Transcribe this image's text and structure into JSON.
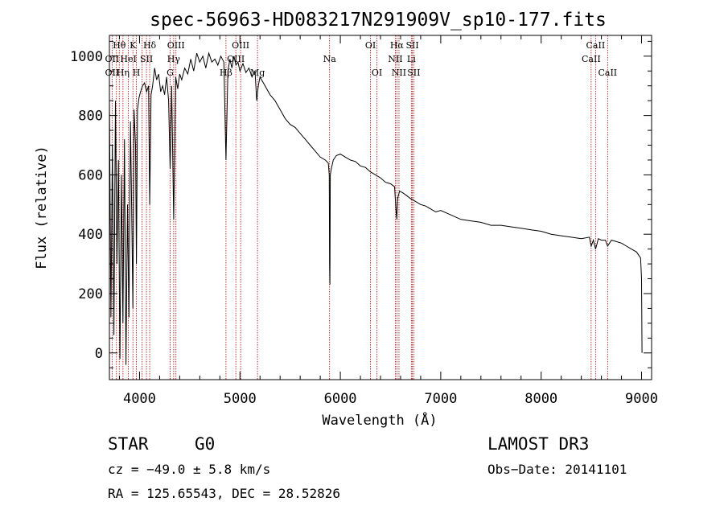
{
  "chart_data": {
    "type": "line",
    "title": "spec-56963-HD083217N291909V_sp10-177.fits",
    "xlabel": "Wavelength (Å)",
    "ylabel": "Flux (relative)",
    "xlim": [
      3700,
      9100
    ],
    "ylim": [
      -90,
      1070
    ],
    "xticks": [
      4000,
      5000,
      6000,
      7000,
      8000,
      9000
    ],
    "yticks": [
      0,
      200,
      400,
      600,
      800,
      1000
    ],
    "x_minor_step": 200,
    "y_minor_step": 50,
    "tick_labels_x": [
      "4000",
      "5000",
      "6000",
      "7000",
      "8000",
      "9000"
    ],
    "tick_labels_y": [
      "0",
      "200",
      "400",
      "600",
      "800",
      "1000"
    ],
    "series": [
      {
        "name": "spectrum",
        "color": "#000000",
        "x": [
          3700,
          3715,
          3730,
          3745,
          3760,
          3775,
          3790,
          3805,
          3820,
          3835,
          3850,
          3865,
          3880,
          3895,
          3910,
          3925,
          3934,
          3945,
          3960,
          3969,
          3980,
          3995,
          4010,
          4030,
          4050,
          4070,
          4090,
          4101,
          4115,
          4130,
          4150,
          4170,
          4190,
          4210,
          4230,
          4250,
          4270,
          4290,
          4305,
          4320,
          4340,
          4360,
          4380,
          4400,
          4420,
          4450,
          4480,
          4510,
          4540,
          4570,
          4600,
          4630,
          4660,
          4690,
          4720,
          4750,
          4780,
          4810,
          4840,
          4861,
          4880,
          4900,
          4920,
          4940,
          4960,
          4980,
          5000,
          5030,
          5060,
          5090,
          5120,
          5150,
          5167,
          5183,
          5200,
          5250,
          5300,
          5350,
          5400,
          5450,
          5500,
          5550,
          5600,
          5650,
          5700,
          5750,
          5800,
          5850,
          5880,
          5890,
          5893,
          5896,
          5900,
          5910,
          5930,
          5960,
          6000,
          6050,
          6100,
          6150,
          6200,
          6250,
          6300,
          6350,
          6400,
          6450,
          6500,
          6540,
          6555,
          6563,
          6570,
          6590,
          6620,
          6660,
          6700,
          6750,
          6800,
          6850,
          6900,
          6950,
          7000,
          7100,
          7200,
          7300,
          7400,
          7500,
          7600,
          7700,
          7800,
          7900,
          8000,
          8100,
          8200,
          8300,
          8400,
          8480,
          8498,
          8520,
          8542,
          8570,
          8600,
          8640,
          8662,
          8700,
          8750,
          8800,
          8850,
          8900,
          8950,
          8990,
          9000,
          9005
        ],
        "y": [
          850,
          120,
          700,
          60,
          850,
          300,
          650,
          -20,
          600,
          100,
          720,
          -40,
          500,
          120,
          780,
          400,
          150,
          820,
          700,
          300,
          820,
          860,
          880,
          900,
          910,
          880,
          900,
          500,
          870,
          900,
          960,
          920,
          940,
          880,
          900,
          870,
          930,
          850,
          620,
          900,
          450,
          930,
          890,
          940,
          920,
          960,
          940,
          990,
          950,
          1010,
          980,
          1000,
          960,
          1010,
          980,
          990,
          970,
          1000,
          980,
          650,
          950,
          990,
          960,
          1000,
          970,
          980,
          950,
          975,
          945,
          960,
          930,
          950,
          850,
          900,
          930,
          900,
          870,
          850,
          820,
          790,
          770,
          760,
          740,
          720,
          700,
          680,
          660,
          650,
          640,
          600,
          300,
          230,
          600,
          620,
          650,
          665,
          670,
          660,
          650,
          645,
          630,
          625,
          610,
          600,
          590,
          575,
          570,
          560,
          480,
          450,
          520,
          545,
          540,
          530,
          520,
          510,
          500,
          495,
          485,
          475,
          480,
          465,
          450,
          445,
          440,
          430,
          430,
          425,
          420,
          415,
          410,
          400,
          395,
          390,
          385,
          390,
          360,
          380,
          350,
          385,
          380,
          380,
          360,
          380,
          375,
          370,
          360,
          350,
          340,
          320,
          250,
          0
        ]
      }
    ],
    "line_markers": {
      "color": "#b00000",
      "x": [
        3727,
        3770,
        3798,
        3835,
        3889,
        3934,
        3969,
        4026,
        4069,
        4101,
        4305,
        4340,
        4363,
        4861,
        4959,
        5007,
        5175,
        5893,
        6300,
        6364,
        6548,
        6563,
        6584,
        6707,
        6717,
        6731,
        8498,
        8542,
        8662
      ],
      "labels": [
        {
          "text": "OII",
          "x": 3727,
          "row": 2
        },
        {
          "text": "Hθ",
          "x": 3798,
          "row": 0
        },
        {
          "text": "OII",
          "x": 3727,
          "row": 1
        },
        {
          "text": "Hη",
          "x": 3835,
          "row": 2
        },
        {
          "text": "K",
          "x": 3934,
          "row": 0
        },
        {
          "text": "HeI",
          "x": 3889,
          "row": 1
        },
        {
          "text": "H",
          "x": 3969,
          "row": 2
        },
        {
          "text": "Hδ",
          "x": 4101,
          "row": 0
        },
        {
          "text": "SII",
          "x": 4069,
          "row": 1
        },
        {
          "text": "OIII",
          "x": 4363,
          "row": 0
        },
        {
          "text": "Hγ",
          "x": 4340,
          "row": 1
        },
        {
          "text": "G",
          "x": 4305,
          "row": 2
        },
        {
          "text": "OIII",
          "x": 5007,
          "row": 0
        },
        {
          "text": "OIII",
          "x": 4959,
          "row": 1
        },
        {
          "text": "Hβ",
          "x": 4861,
          "row": 2
        },
        {
          "text": "Mg",
          "x": 5175,
          "row": 2
        },
        {
          "text": "Na",
          "x": 5893,
          "row": 1
        },
        {
          "text": "OI",
          "x": 6300,
          "row": 0
        },
        {
          "text": "OI",
          "x": 6364,
          "row": 2
        },
        {
          "text": "Hα",
          "x": 6563,
          "row": 0
        },
        {
          "text": "SII",
          "x": 6717,
          "row": 0
        },
        {
          "text": "NII",
          "x": 6548,
          "row": 1
        },
        {
          "text": "Li",
          "x": 6707,
          "row": 1
        },
        {
          "text": "NII",
          "x": 6584,
          "row": 2
        },
        {
          "text": "SII",
          "x": 6731,
          "row": 2
        },
        {
          "text": "CaII",
          "x": 8542,
          "row": 0
        },
        {
          "text": "CaII",
          "x": 8498,
          "row": 1
        },
        {
          "text": "CaII",
          "x": 8662,
          "row": 2
        }
      ]
    }
  },
  "info": {
    "class": "STAR",
    "subclass": "G0",
    "survey": "LAMOST DR3",
    "cz": "cz = −49.0 ± 5.8 km/s",
    "obsdate": "Obs−Date: 20141101",
    "radec": "RA = 125.65543, DEC =  28.52826"
  }
}
